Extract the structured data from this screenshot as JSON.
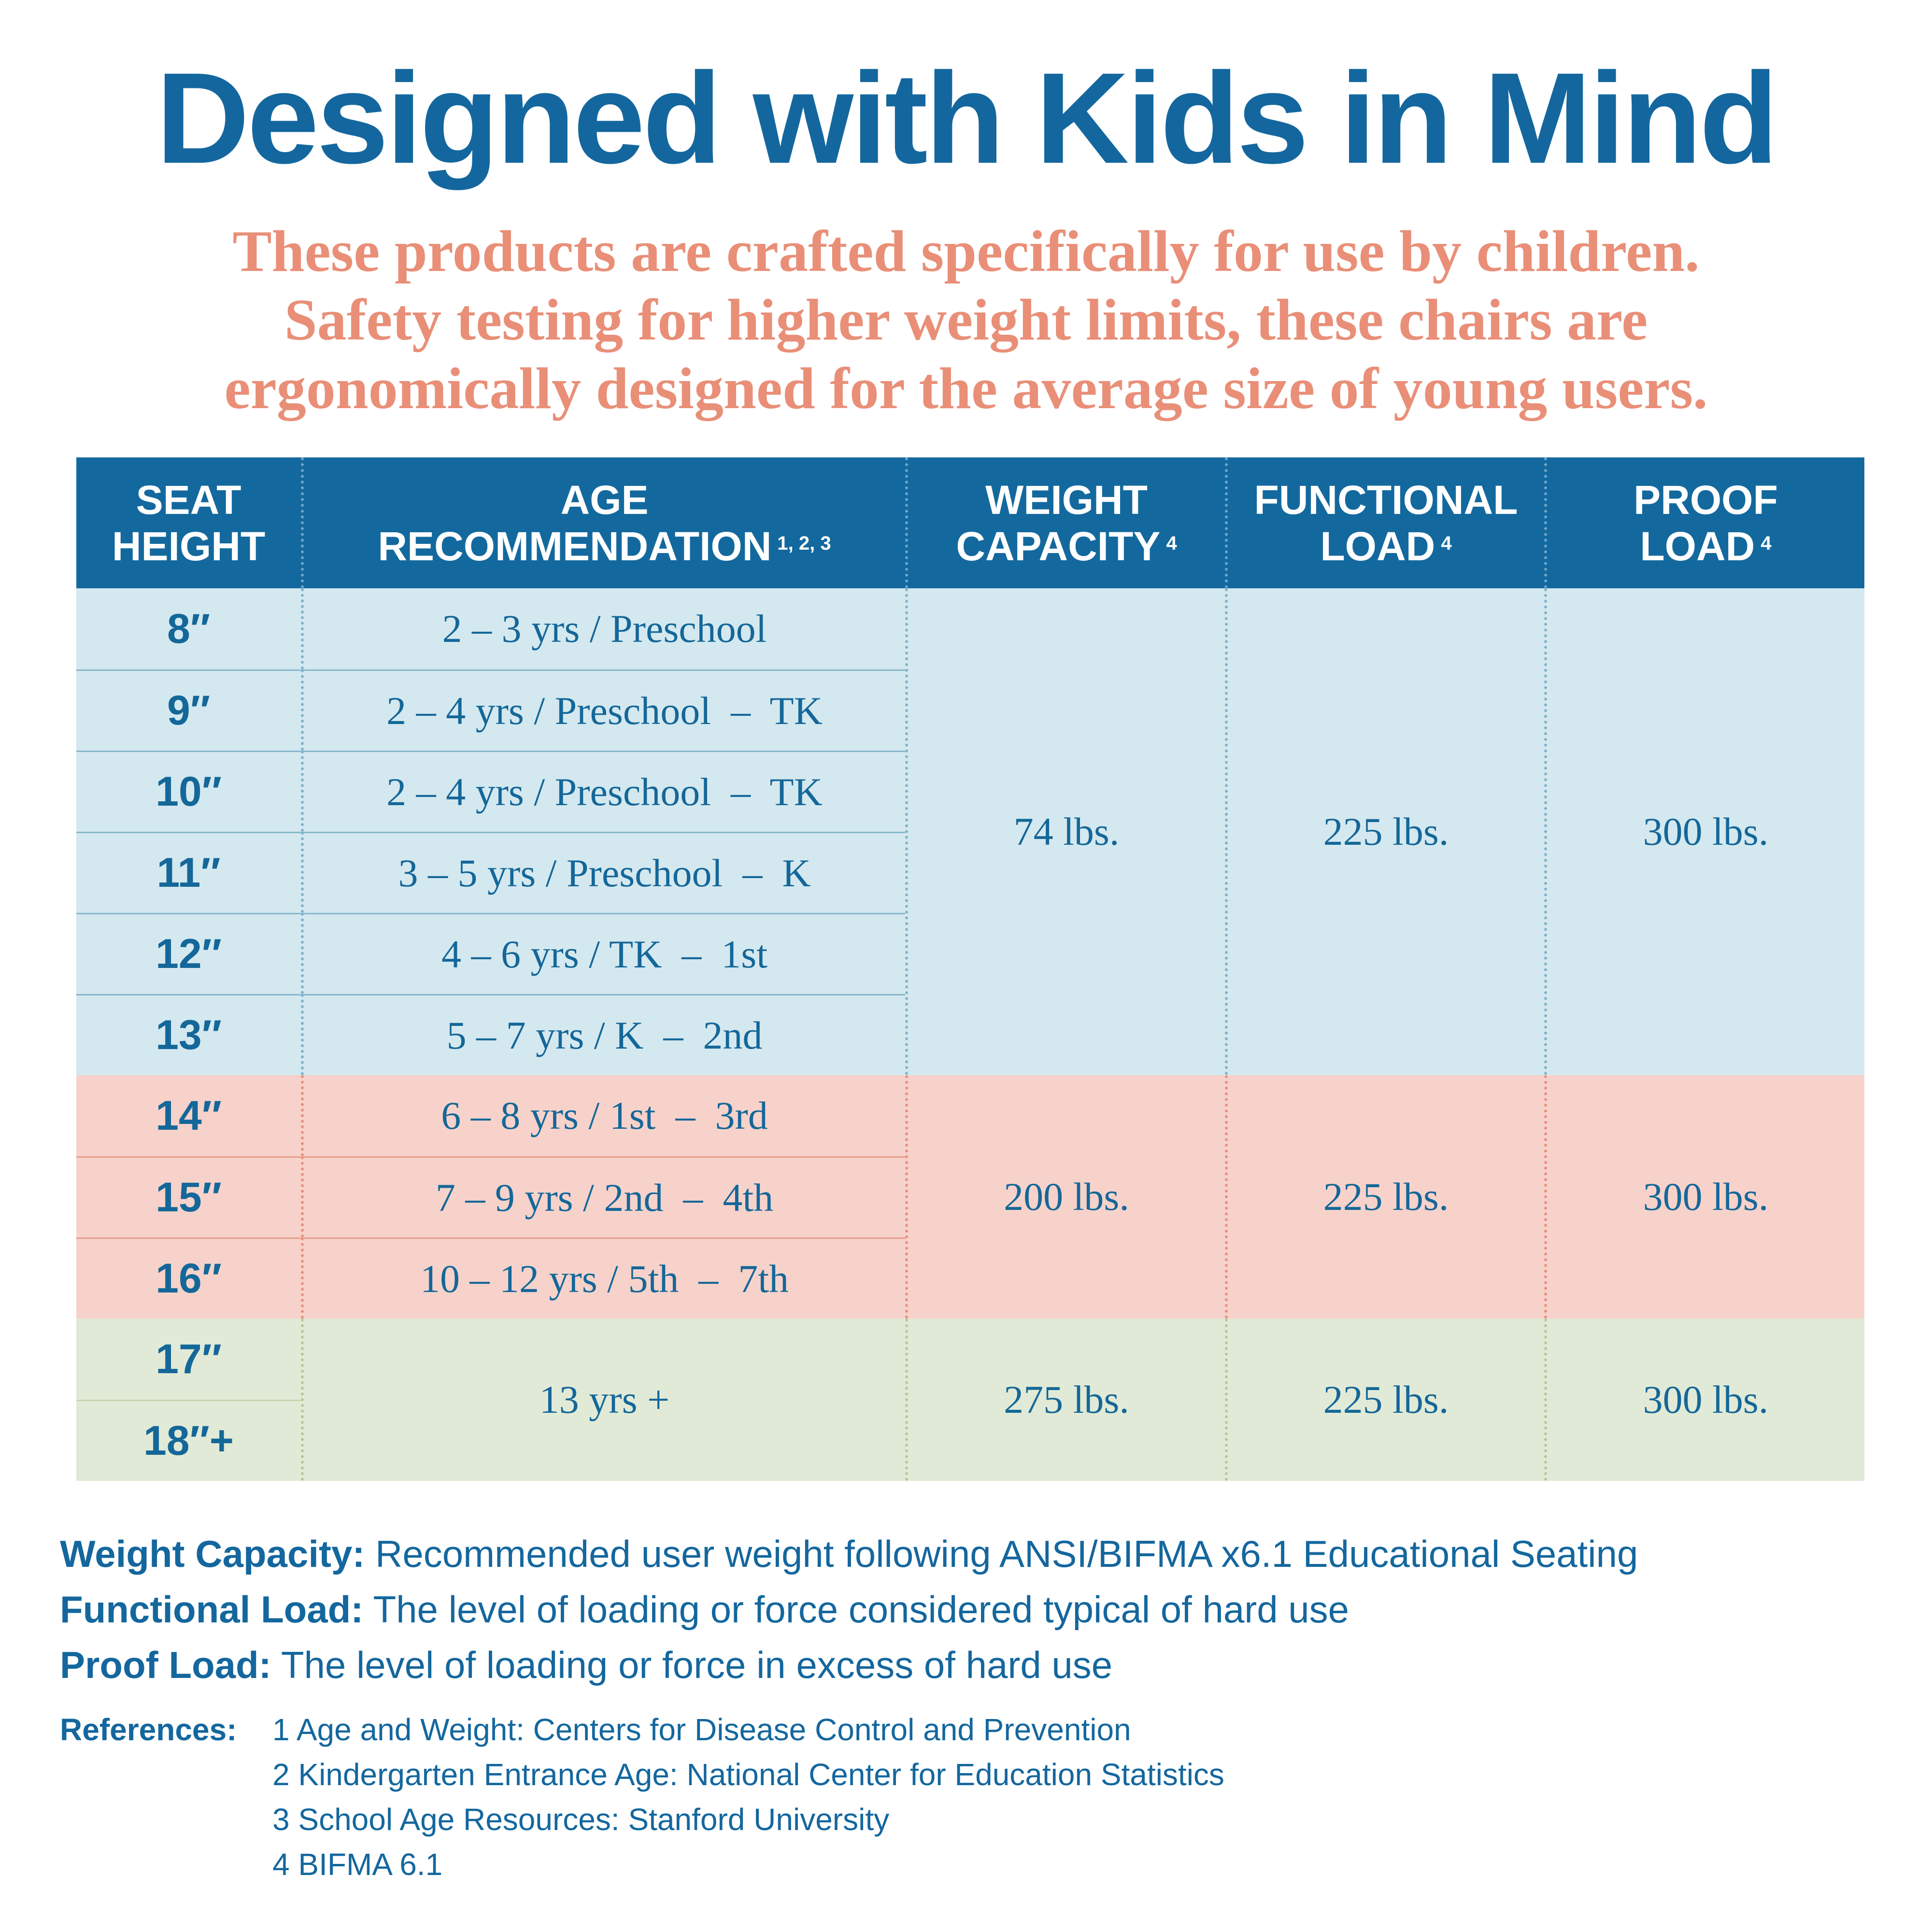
{
  "title": "Designed with Kids in Mind",
  "subtitle": [
    "These products are crafted specifically for use by children.",
    "Safety testing for higher weight limits, these chairs are",
    "ergonomically designed for the average size of young users."
  ],
  "colors": {
    "header": "#13699e",
    "text": "#146799",
    "subtitle": "#e98f78",
    "band_blue": "#d4e8ef",
    "band_pink": "#f6d2ca",
    "band_green": "#e1ead6"
  },
  "table": {
    "headers": [
      {
        "line1": "SEAT",
        "line2": "HEIGHT",
        "sup": ""
      },
      {
        "line1": "AGE",
        "line2": "RECOMMENDATION",
        "sup": "1, 2, 3"
      },
      {
        "line1": "WEIGHT",
        "line2": "CAPACITY",
        "sup": "4"
      },
      {
        "line1": "FUNCTIONAL",
        "line2": "LOAD",
        "sup": "4"
      },
      {
        "line1": "PROOF",
        "line2": "LOAD",
        "sup": "4"
      }
    ],
    "seat_heights": [
      "8″",
      "9″",
      "10″",
      "11″",
      "12″",
      "13″",
      "14″",
      "15″",
      "16″",
      "17″",
      "18″+"
    ],
    "ages": [
      "2 – 3 yrs / Preschool",
      "2 – 4 yrs / Preschool  –  TK",
      "2 – 4 yrs / Preschool  –  TK",
      "3 – 5 yrs / Preschool  –  K",
      "4 – 6 yrs / TK  –  1st",
      "5 – 7 yrs / K  –  2nd",
      "6 – 8 yrs / 1st  –  3rd",
      "7 – 9 yrs / 2nd  –  4th",
      "10 – 12 yrs / 5th  –  7th",
      "13 yrs +"
    ],
    "groups": [
      {
        "weight_capacity": "74 lbs.",
        "functional_load": "225 lbs.",
        "proof_load": "300 lbs."
      },
      {
        "weight_capacity": "200 lbs.",
        "functional_load": "225 lbs.",
        "proof_load": "300 lbs."
      },
      {
        "weight_capacity": "275 lbs.",
        "functional_load": "225 lbs.",
        "proof_load": "300 lbs."
      }
    ]
  },
  "definitions": [
    {
      "term": "Weight Capacity:",
      "text": " Recommended user weight following ANSI/BIFMA x6.1 Educational Seating"
    },
    {
      "term": "Functional Load:",
      "text": " The level of loading or force considered typical of hard use"
    },
    {
      "term": "Proof Load:",
      "text": " The level of loading or force in excess of hard use"
    }
  ],
  "references": {
    "label": "References:",
    "items": [
      "1 Age and Weight: Centers for Disease Control and Prevention",
      "2 Kindergarten Entrance Age: National Center for Education Statistics",
      "3 School Age Resources: Stanford University",
      "4 BIFMA 6.1"
    ]
  }
}
